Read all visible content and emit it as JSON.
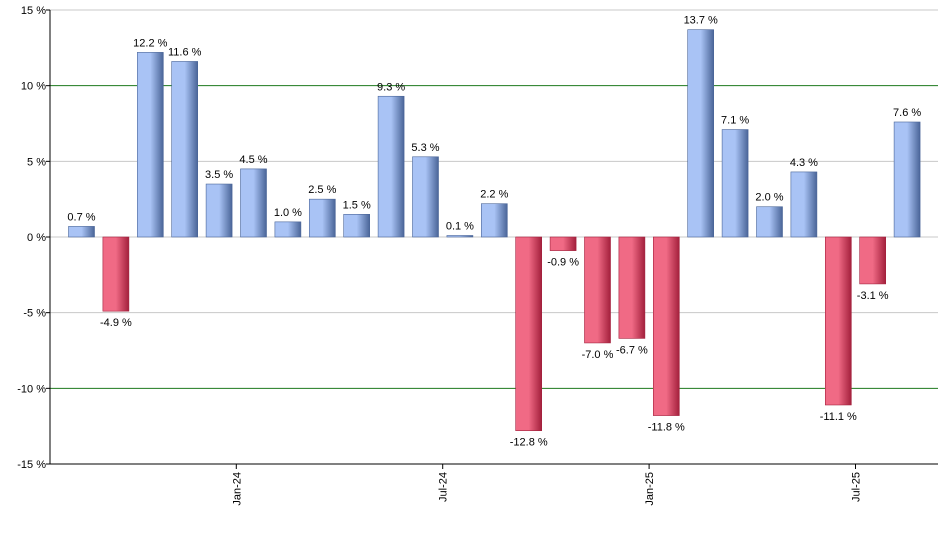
{
  "chart_data": {
    "type": "bar",
    "ylim": [
      -15,
      15
    ],
    "y_ticks": [
      {
        "value": 15,
        "label": "15 %"
      },
      {
        "value": 10,
        "label": "10 %"
      },
      {
        "value": 5,
        "label": "5 %"
      },
      {
        "value": 0,
        "label": "0 %"
      },
      {
        "value": -5,
        "label": "-5 %"
      },
      {
        "value": -10,
        "label": "-10 %"
      },
      {
        "value": -15,
        "label": "-15 %"
      }
    ],
    "highlighted_gridlines": [
      10,
      -10
    ],
    "x_ticks": [
      {
        "after_bar": 4,
        "label": "Jan-24"
      },
      {
        "after_bar": 10,
        "label": "Jul-24"
      },
      {
        "after_bar": 16,
        "label": "Jan-25"
      },
      {
        "after_bar": 22,
        "label": "Jul-25"
      }
    ],
    "values": [
      0.7,
      -4.9,
      12.2,
      11.6,
      3.5,
      4.5,
      1.0,
      2.5,
      1.5,
      9.3,
      5.3,
      0.1,
      2.2,
      -12.8,
      -0.9,
      -7.0,
      -6.7,
      -11.8,
      13.7,
      7.1,
      2.0,
      4.3,
      -11.1,
      -3.1,
      7.6
    ],
    "value_labels": [
      "0.7 %",
      "-4.9 %",
      "12.2 %",
      "11.6 %",
      "3.5 %",
      "4.5 %",
      "1.0 %",
      "2.5 %",
      "1.5 %",
      "9.3 %",
      "5.3 %",
      "0.1 %",
      "2.2 %",
      "-12.8 %",
      "-0.9 %",
      "-7.0 %",
      "-6.7 %",
      "-11.8 %",
      "13.7 %",
      "7.1 %",
      "2.0 %",
      "4.3 %",
      "-11.1 %",
      "-3.1 %",
      "7.6 %"
    ],
    "colors": {
      "positive_light": "#a9c3f5",
      "positive_dark": "#4a6598",
      "negative_light": "#f06a85",
      "negative_dark": "#a3203c",
      "grid": "#c8c8c8",
      "highlight_grid": "#1e7a1e",
      "axis": "#000000"
    },
    "grid": true
  }
}
